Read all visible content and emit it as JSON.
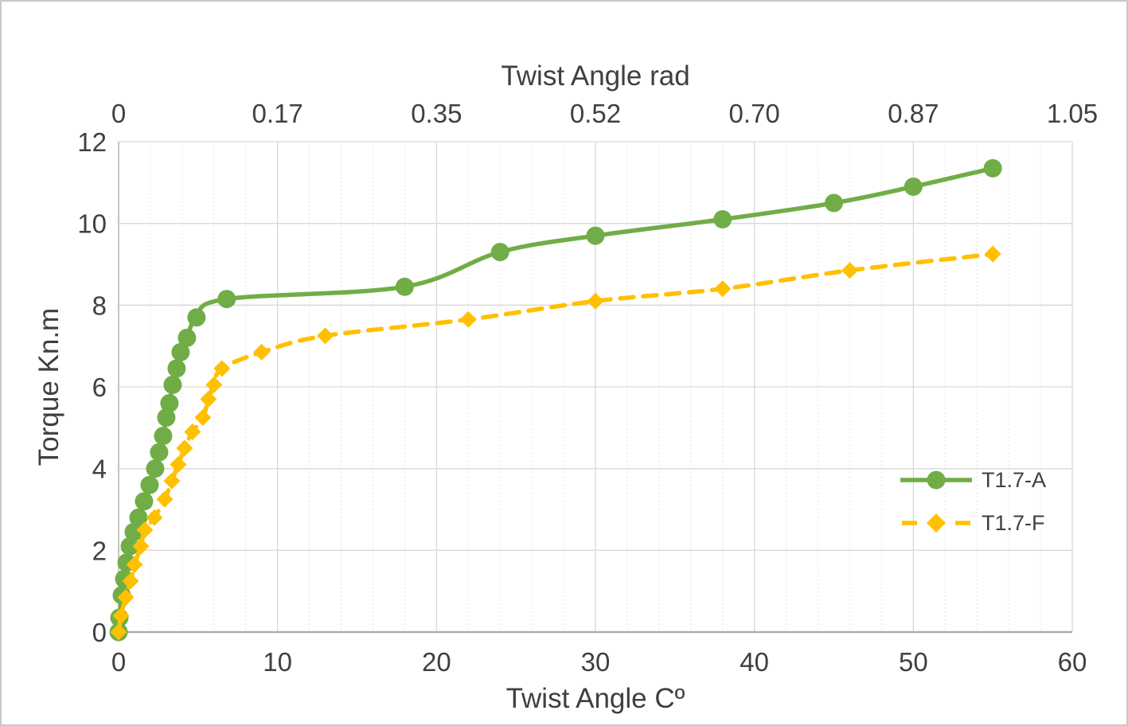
{
  "chart_data": {
    "type": "line",
    "title": "",
    "top_axis": {
      "label": "Twist Angle rad",
      "tick_labels": [
        "0",
        "0.17",
        "0.35",
        "0.52",
        "0.70",
        "0.87",
        "1.05"
      ],
      "range": [
        0,
        1.05
      ]
    },
    "x_axis": {
      "label": "Twist Angle Cº",
      "ticks": [
        0,
        10,
        20,
        30,
        40,
        50,
        60
      ],
      "range": [
        0,
        60
      ],
      "minor_grid_step": 2
    },
    "y_axis": {
      "label": "Torque Kn.m",
      "ticks": [
        0,
        2,
        4,
        6,
        8,
        10,
        12
      ],
      "range": [
        0,
        12
      ]
    },
    "grid": true,
    "legend_position": "inside-right",
    "series": [
      {
        "name": "T1.7-A",
        "color": "#70AD47",
        "line_style": "solid",
        "marker": "circle",
        "points": [
          [
            0,
            0
          ],
          [
            0.05,
            0.35
          ],
          [
            0.2,
            0.9
          ],
          [
            0.35,
            1.3
          ],
          [
            0.5,
            1.7
          ],
          [
            0.7,
            2.1
          ],
          [
            0.95,
            2.45
          ],
          [
            1.25,
            2.8
          ],
          [
            1.6,
            3.2
          ],
          [
            1.95,
            3.6
          ],
          [
            2.3,
            4.0
          ],
          [
            2.55,
            4.4
          ],
          [
            2.8,
            4.8
          ],
          [
            3.0,
            5.25
          ],
          [
            3.2,
            5.6
          ],
          [
            3.4,
            6.05
          ],
          [
            3.65,
            6.45
          ],
          [
            3.9,
            6.85
          ],
          [
            4.3,
            7.2
          ],
          [
            4.9,
            7.7
          ],
          [
            6.8,
            8.15
          ],
          [
            18,
            8.45
          ],
          [
            24,
            9.3
          ],
          [
            30,
            9.7
          ],
          [
            38,
            10.1
          ],
          [
            45,
            10.5
          ],
          [
            50,
            10.9
          ],
          [
            55,
            11.35
          ]
        ]
      },
      {
        "name": "T1.7-F",
        "color": "#FFC000",
        "line_style": "dashed",
        "marker": "diamond",
        "points": [
          [
            0,
            0
          ],
          [
            0.15,
            0.4
          ],
          [
            0.45,
            0.85
          ],
          [
            0.75,
            1.25
          ],
          [
            1.0,
            1.65
          ],
          [
            1.4,
            2.1
          ],
          [
            1.65,
            2.5
          ],
          [
            2.25,
            2.8
          ],
          [
            2.9,
            3.25
          ],
          [
            3.35,
            3.7
          ],
          [
            3.75,
            4.1
          ],
          [
            4.15,
            4.5
          ],
          [
            4.65,
            4.9
          ],
          [
            5.3,
            5.25
          ],
          [
            5.65,
            5.7
          ],
          [
            6.0,
            6.05
          ],
          [
            6.5,
            6.45
          ],
          [
            9,
            6.85
          ],
          [
            13,
            7.25
          ],
          [
            22,
            7.65
          ],
          [
            30,
            8.1
          ],
          [
            38,
            8.4
          ],
          [
            46,
            8.85
          ],
          [
            55,
            9.25
          ]
        ]
      }
    ],
    "colors": {
      "major_grid": "#d9d9d9",
      "minor_grid": "#e4e4e4",
      "axis_line": "#adadad",
      "tick_text": "#404040"
    }
  }
}
